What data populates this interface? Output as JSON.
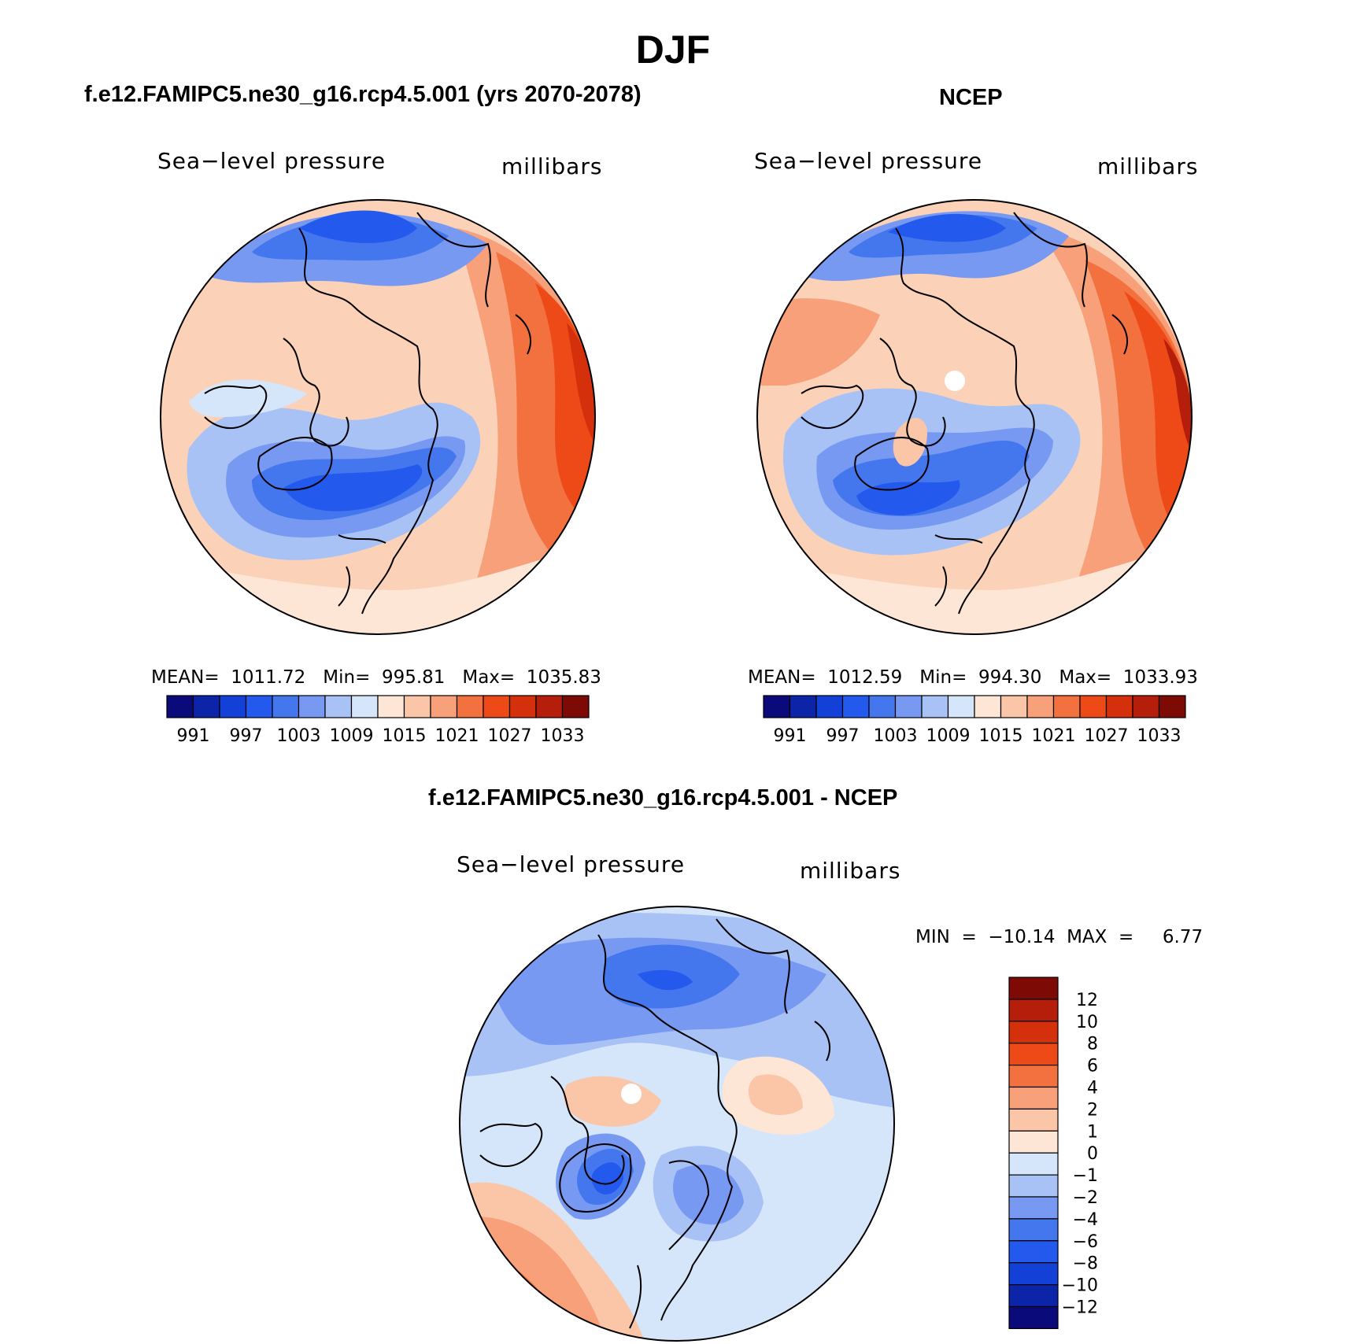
{
  "main_title": "DJF",
  "panels": [
    {
      "title": "f.e12.FAMIPC5.ne30_g16.rcp4.5.001 (yrs 2070-2078)",
      "field_label": "Sea−level pressure",
      "units": "millibars",
      "stats": "MEAN=  1011.72   Min=  995.81   Max=  1035.83"
    },
    {
      "title": "NCEP",
      "field_label": "Sea−level pressure",
      "units": "millibars",
      "stats": "MEAN=  1012.59   Min=  994.30   Max=  1033.93"
    },
    {
      "title": "f.e12.FAMIPC5.ne30_g16.rcp4.5.001 - NCEP",
      "field_label": "Sea−level pressure",
      "units": "millibars",
      "stats": "MIN  =  −10.14  MAX  =     6.77"
    }
  ],
  "abs_colorbar": {
    "labels": [
      "991",
      "997",
      "1003",
      "1009",
      "1015",
      "1021",
      "1027",
      "1033"
    ],
    "colors": [
      "#0a0a7a",
      "#0b24a8",
      "#1340d6",
      "#2459ee",
      "#4477ee",
      "#7799f2",
      "#a8c2f6",
      "#d6e6fa",
      "#fde6d6",
      "#fbc6a8",
      "#f8a07a",
      "#f2713e",
      "#ee4a18",
      "#d4300c",
      "#b41e0a",
      "#7e0a05"
    ]
  },
  "diff_colorbar": {
    "labels": [
      "12",
      "10",
      "8",
      "6",
      "4",
      "2",
      "1",
      "0",
      "−1",
      "−2",
      "−4",
      "−6",
      "−8",
      "−10",
      "−12"
    ],
    "colors": [
      "#7e0a05",
      "#b41e0a",
      "#d4300c",
      "#ee4a18",
      "#f2713e",
      "#f8a07a",
      "#fbc6a8",
      "#fde6d6",
      "#d6e6fa",
      "#a8c2f6",
      "#7799f2",
      "#4477ee",
      "#2459ee",
      "#1340d6",
      "#0b24a8",
      "#0a0a7a"
    ]
  }
}
